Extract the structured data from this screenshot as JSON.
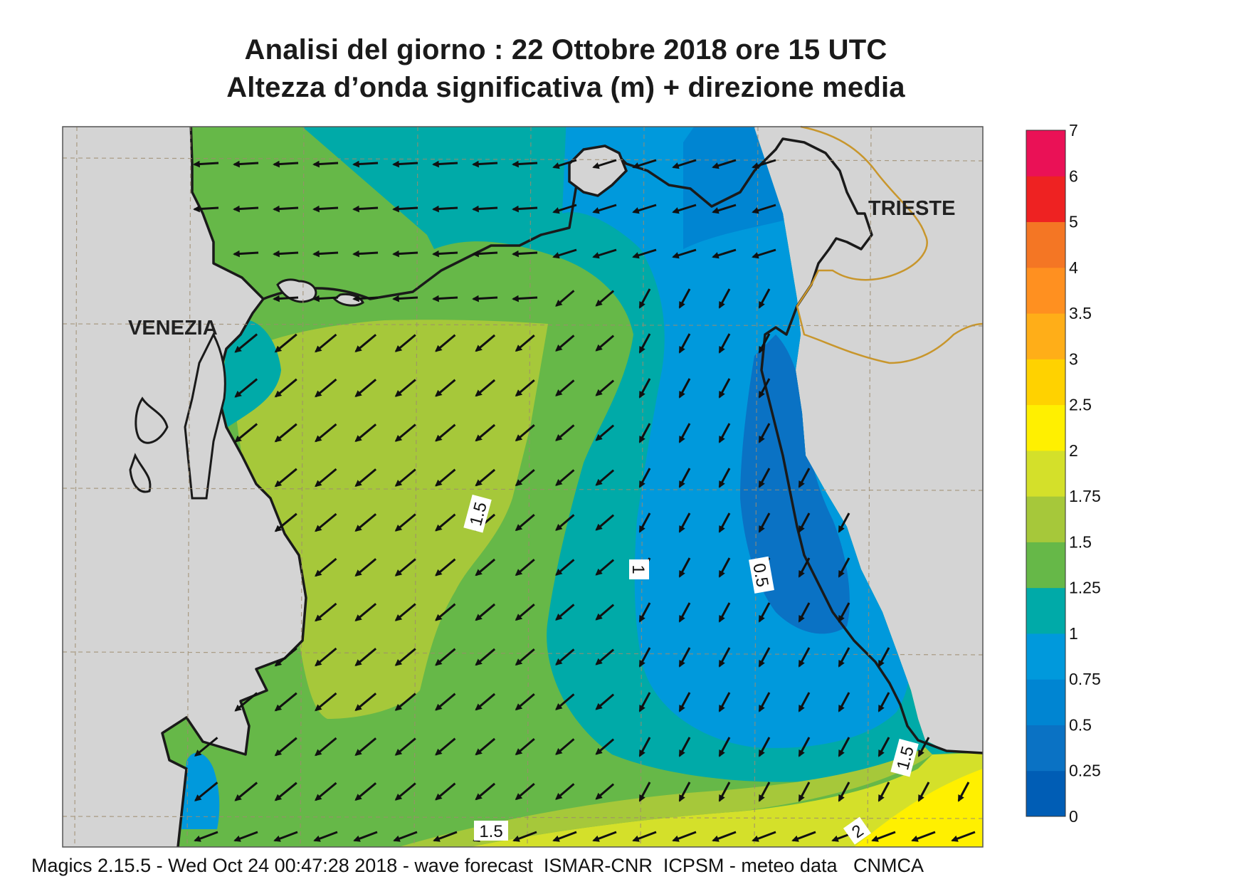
{
  "header": {
    "title_line1": "Analisi del giorno :  22  Ottobre  2018   ore 15 UTC",
    "title_line2": "Altezza d’onda significativa (m) + direzione media"
  },
  "places": {
    "venezia": "VENEZIA",
    "trieste": "TRIESTE"
  },
  "contour_labels": [
    "1.5",
    "1",
    "0.5",
    "1.5",
    "1.5",
    "2"
  ],
  "footer": "Magics 2.15.5 - Wed Oct 24 00:47:28 2018 - wave forecast  ISMAR-CNR  ICPSM - meteo data   CNMCA",
  "colorbar": {
    "unit": "m",
    "levels": [
      {
        "value": "0",
        "color": "#005db5"
      },
      {
        "value": "0.25",
        "color": "#0a72c4"
      },
      {
        "value": "0.5",
        "color": "#0085d2"
      },
      {
        "value": "0.75",
        "color": "#0099dc"
      },
      {
        "value": "1",
        "color": "#00aaa8"
      },
      {
        "value": "1.25",
        "color": "#66b848"
      },
      {
        "value": "1.5",
        "color": "#a6c83a"
      },
      {
        "value": "1.75",
        "color": "#d4e02a"
      },
      {
        "value": "2",
        "color": "#fff000"
      },
      {
        "value": "2.5",
        "color": "#ffd200"
      },
      {
        "value": "3",
        "color": "#ffae18"
      },
      {
        "value": "3.5",
        "color": "#ff9020"
      },
      {
        "value": "4",
        "color": "#f47624"
      },
      {
        "value": "5",
        "color": "#ee2222"
      },
      {
        "value": "6",
        "color": "#ea1156"
      },
      {
        "value": "7",
        "color": ""
      }
    ]
  },
  "colors": {
    "land": "#d4d4d4",
    "coast": "#1a1a1a",
    "border": "#c8962c",
    "arrow": "#111111"
  }
}
